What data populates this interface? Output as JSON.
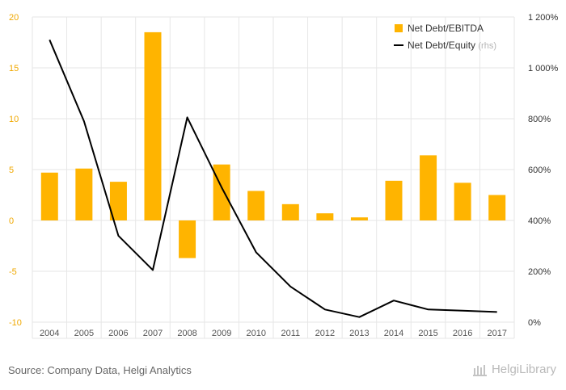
{
  "chart_data": {
    "type": "bar",
    "categories": [
      "2004",
      "2005",
      "2006",
      "2007",
      "2008",
      "2009",
      "2010",
      "2011",
      "2012",
      "2013",
      "2014",
      "2015",
      "2016",
      "2017"
    ],
    "series": [
      {
        "name": "Net Debt/EBITDA",
        "type": "bar",
        "axis": "left",
        "values": [
          4.7,
          5.1,
          3.8,
          18.5,
          -3.7,
          5.5,
          2.9,
          1.6,
          0.7,
          0.3,
          3.9,
          6.4,
          3.7,
          2.5
        ]
      },
      {
        "name": "Net Debt/Equity",
        "type": "line",
        "axis": "right",
        "legend_suffix": "(rhs)",
        "values": [
          1110,
          790,
          340,
          205,
          805,
          530,
          275,
          140,
          50,
          20,
          85,
          50,
          45,
          40
        ]
      }
    ],
    "left_axis": {
      "min": -10,
      "max": 20,
      "ticks": [
        "20",
        "15",
        "10",
        "5",
        "0",
        "-5",
        "-10"
      ],
      "color": "#f0a800"
    },
    "right_axis": {
      "min": 0,
      "max": 1200,
      "ticks": [
        "1 200%",
        "1 000%",
        "800%",
        "600%",
        "400%",
        "200%",
        "0%"
      ]
    },
    "colors": {
      "bar": "#ffb400",
      "line": "#000000",
      "grid": "#e6e6e6"
    },
    "legend_position": "top-right",
    "grid": true
  },
  "footer": {
    "source": "Source: Company Data, Helgi Analytics",
    "logo_text": "HelgiLibrary"
  }
}
